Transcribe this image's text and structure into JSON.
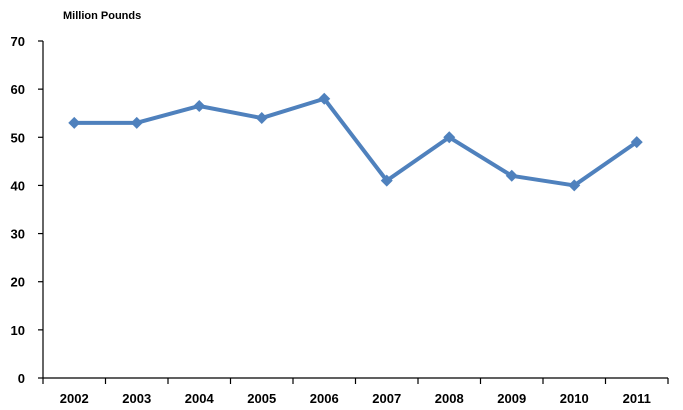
{
  "chart_data": {
    "type": "line",
    "title": "",
    "ylabel": "Million Pounds",
    "xlabel": "",
    "categories": [
      "2002",
      "2003",
      "2004",
      "2005",
      "2006",
      "2007",
      "2008",
      "2009",
      "2010",
      "2011"
    ],
    "series": [
      {
        "values": [
          53,
          53,
          56.5,
          54,
          58,
          41,
          50,
          42,
          40,
          49
        ],
        "color": "#4f81bd",
        "marker": "diamond"
      }
    ],
    "ylim": [
      0,
      70
    ],
    "yticks": [
      0,
      10,
      20,
      30,
      40,
      50,
      60,
      70
    ],
    "grid": false,
    "legend": "none"
  }
}
